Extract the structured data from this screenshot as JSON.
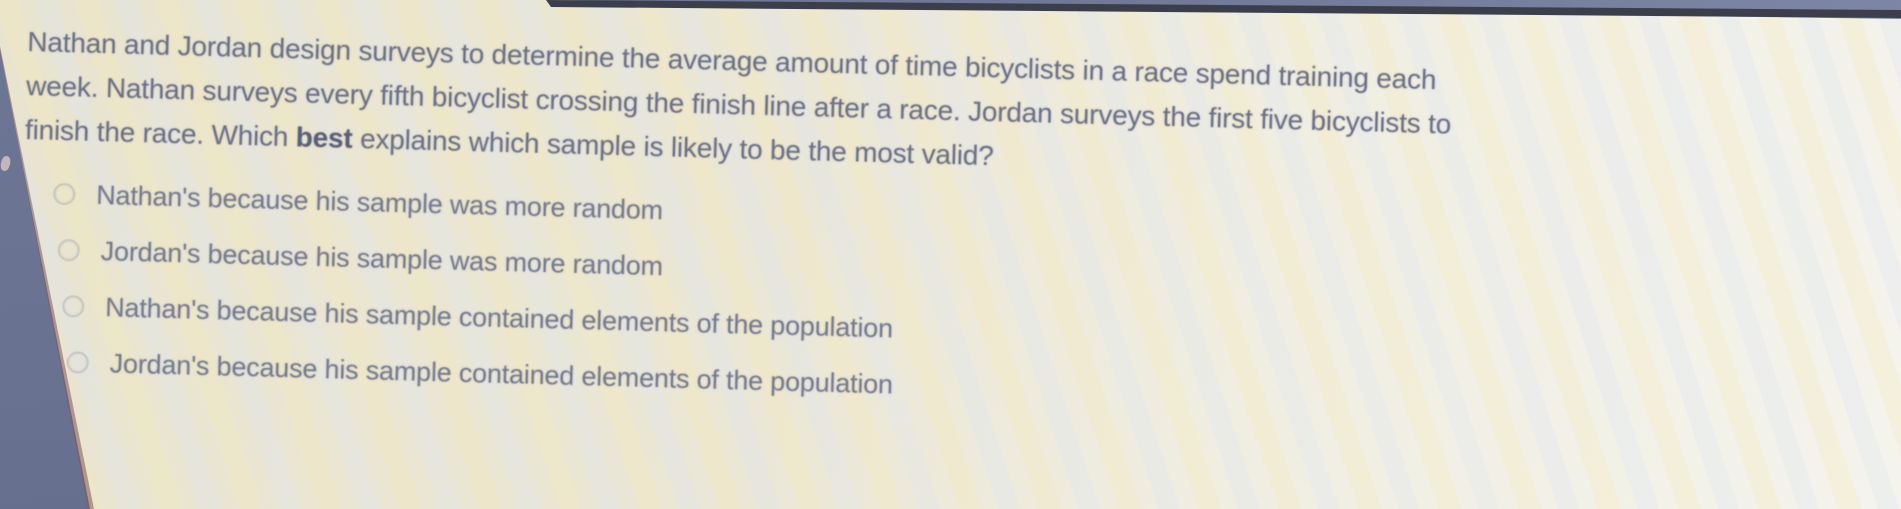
{
  "colors": {
    "background_blue": "#717997",
    "background_blue_light": "#7e89a7",
    "left_wedge_blue": "#6a7292",
    "top_bar_dark": "#3a3f4b",
    "page_cream": "#ebe7d6",
    "question_text": "#6b7087",
    "option_text": "#757a8f"
  },
  "icons": {
    "radio_unselected": "circle-outline"
  },
  "question": {
    "line1": "Nathan and Jordan design surveys to determine the average amount of time bicyclists in a race spend training each",
    "line2": "week. Nathan surveys every fifth bicyclist crossing the finish line after a race. Jordan surveys the first five bicyclists to",
    "line3_before_bold": "finish the race. Which ",
    "line3_bold": "best",
    "line3_after_bold": " explains which sample is likely to be the most valid?"
  },
  "options": [
    {
      "label": "Nathan's because his sample was more random",
      "selected": false
    },
    {
      "label": "Jordan's because his sample was more random",
      "selected": false
    },
    {
      "label": "Nathan's because his sample contained elements of the population",
      "selected": false
    },
    {
      "label": "Jordan's because his sample contained elements of the population",
      "selected": false
    }
  ]
}
